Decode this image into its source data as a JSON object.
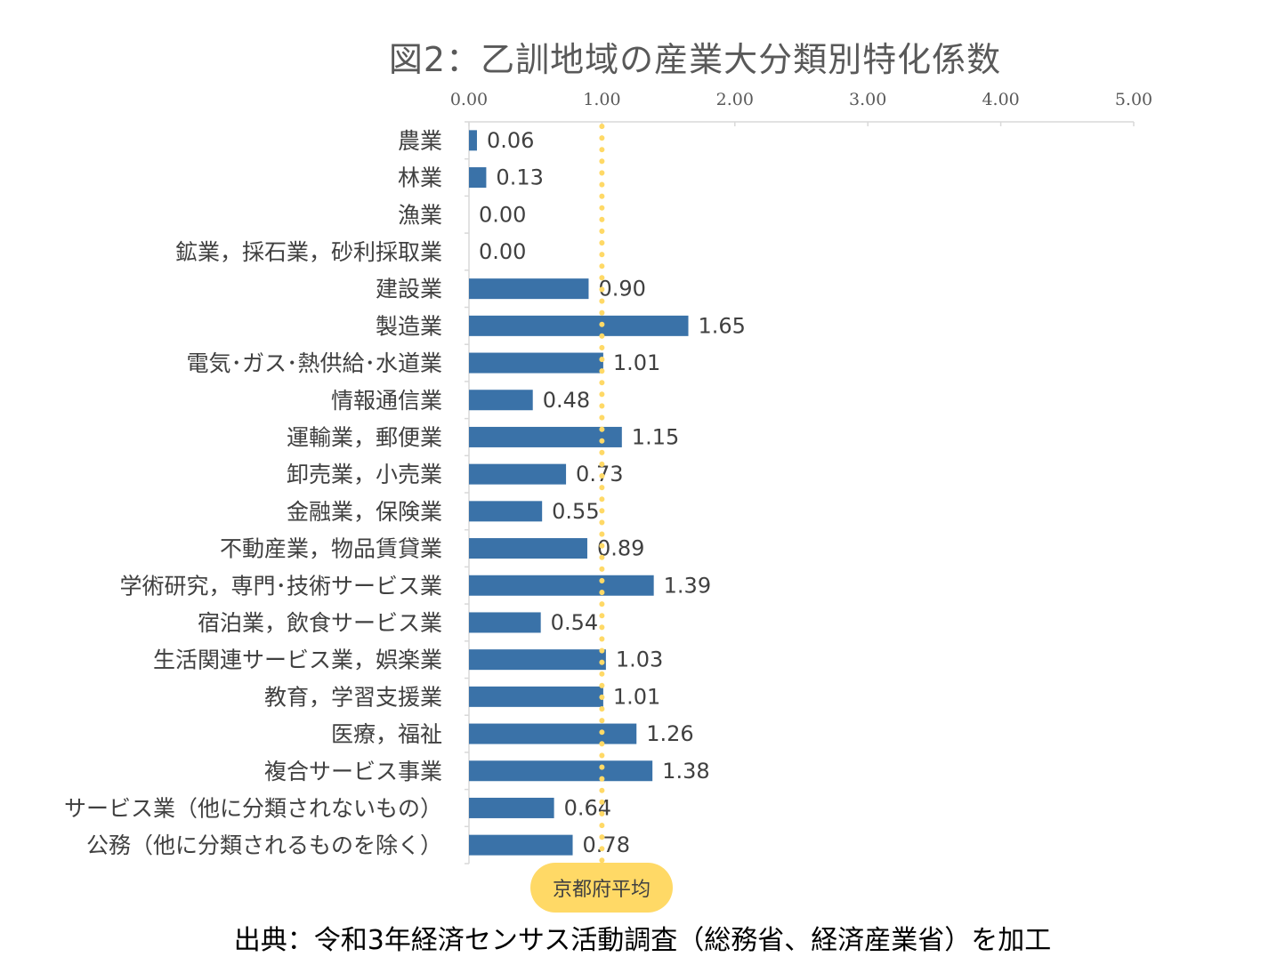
{
  "chart_data": {
    "type": "bar",
    "orientation": "horizontal",
    "title": "図2：乙訓地域の産業大分類別特化係数",
    "categories": [
      "農業",
      "林業",
      "漁業",
      "鉱業，採石業，砂利採取業",
      "建設業",
      "製造業",
      "電気･ガス･熱供給･水道業",
      "情報通信業",
      "運輸業，郵便業",
      "卸売業，小売業",
      "金融業，保険業",
      "不動産業，物品賃貸業",
      "学術研究，専門･技術サービス業",
      "宿泊業，飲食サービス業",
      "生活関連サービス業，娯楽業",
      "教育，学習支援業",
      "医療，福祉",
      "複合サービス事業",
      "サービス業（他に分類されないもの）",
      "公務（他に分類されるものを除く）"
    ],
    "values": [
      0.06,
      0.13,
      0.0,
      0.0,
      0.9,
      1.65,
      1.01,
      0.48,
      1.15,
      0.73,
      0.55,
      0.89,
      1.39,
      0.54,
      1.03,
      1.01,
      1.26,
      1.38,
      0.64,
      0.78
    ],
    "value_labels": [
      "0.06",
      "0.13",
      "0.00",
      "0.00",
      "0.90",
      "1.65",
      "1.01",
      "0.48",
      "1.15",
      "0.73",
      "0.55",
      "0.89",
      "1.39",
      "0.54",
      "1.03",
      "1.01",
      "1.26",
      "1.38",
      "0.64",
      "0.78"
    ],
    "xlim": [
      0,
      5
    ],
    "xticks": [
      "0.00",
      "1.00",
      "2.00",
      "3.00",
      "4.00",
      "5.00"
    ],
    "x_axis_position": "top",
    "reference_line": {
      "value": 1.0,
      "label": "京都府平均",
      "color": "#FFD966",
      "style": "dotted"
    },
    "bar_color": "#3A72A8",
    "grid": false,
    "legend": "none"
  },
  "source": "出典：令和3年経済センサス活動調査（総務省、経済産業省）を加工"
}
